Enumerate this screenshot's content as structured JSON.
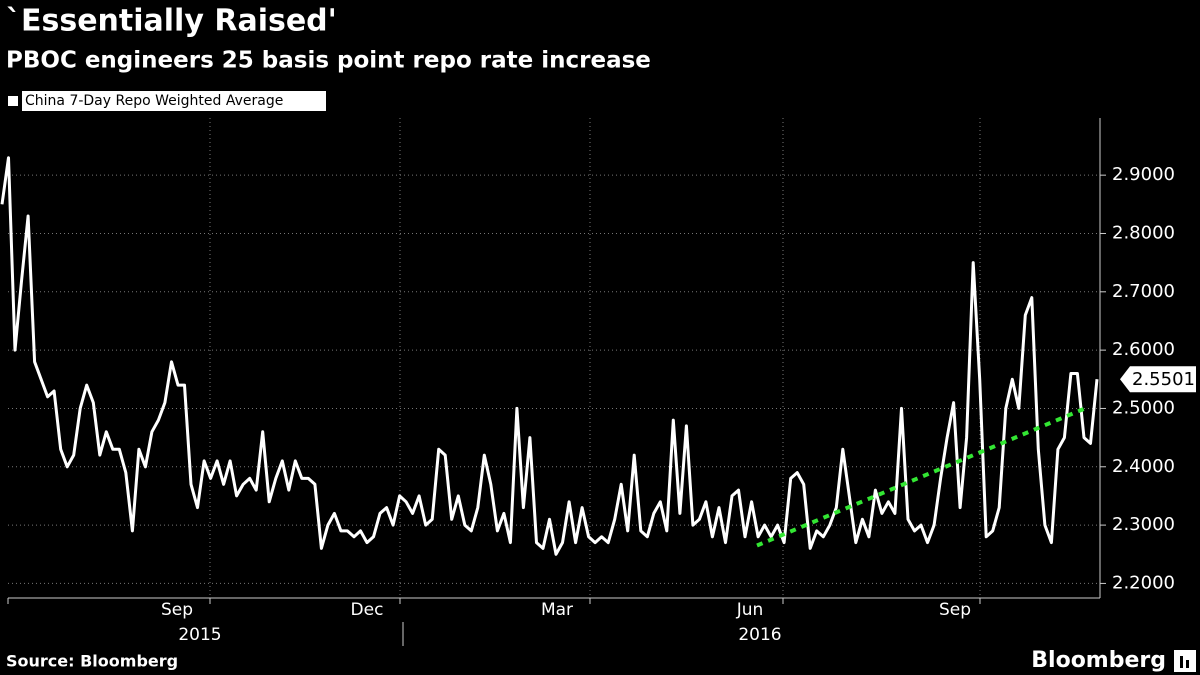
{
  "chart_data": {
    "type": "line",
    "title": "`Essentially Raised'",
    "subtitle": "PBOC engineers 25 basis point repo rate increase",
    "source": "Source: Bloomberg",
    "brand": "Bloomberg",
    "month_labels": [
      "Sep",
      "Dec",
      "Mar",
      "Jun",
      "Sep"
    ],
    "year_labels": [
      "2015",
      "2016"
    ],
    "ylim": [
      2.175,
      2.998
    ],
    "yticks": [
      {
        "value": 2.2,
        "label": "2.2000"
      },
      {
        "value": 2.3,
        "label": "2.3000"
      },
      {
        "value": 2.4,
        "label": "2.4000"
      },
      {
        "value": 2.5,
        "label": "2.5000"
      },
      {
        "value": 2.6,
        "label": "2.6000"
      },
      {
        "value": 2.7,
        "label": "2.7000"
      },
      {
        "value": 2.8,
        "label": "2.8000"
      },
      {
        "value": 2.9,
        "label": "2.9000"
      }
    ],
    "grid": true,
    "legend": "top-left",
    "series": [
      {
        "name": "China 7-Day Repo Weighted Average",
        "color": "#ffffff",
        "values": [
          2.85,
          2.93,
          2.6,
          2.72,
          2.83,
          2.58,
          2.55,
          2.52,
          2.53,
          2.43,
          2.4,
          2.42,
          2.5,
          2.54,
          2.51,
          2.42,
          2.46,
          2.43,
          2.43,
          2.39,
          2.29,
          2.43,
          2.4,
          2.46,
          2.48,
          2.51,
          2.58,
          2.54,
          2.54,
          2.37,
          2.33,
          2.41,
          2.38,
          2.41,
          2.37,
          2.41,
          2.35,
          2.37,
          2.38,
          2.36,
          2.46,
          2.34,
          2.38,
          2.41,
          2.36,
          2.41,
          2.38,
          2.38,
          2.37,
          2.26,
          2.3,
          2.32,
          2.29,
          2.29,
          2.28,
          2.29,
          2.27,
          2.28,
          2.32,
          2.33,
          2.3,
          2.35,
          2.34,
          2.32,
          2.35,
          2.3,
          2.31,
          2.43,
          2.42,
          2.31,
          2.35,
          2.3,
          2.29,
          2.33,
          2.42,
          2.37,
          2.29,
          2.32,
          2.27,
          2.5,
          2.33,
          2.45,
          2.27,
          2.26,
          2.31,
          2.25,
          2.27,
          2.34,
          2.27,
          2.33,
          2.28,
          2.27,
          2.28,
          2.27,
          2.31,
          2.37,
          2.29,
          2.42,
          2.29,
          2.28,
          2.32,
          2.34,
          2.29,
          2.48,
          2.32,
          2.47,
          2.3,
          2.31,
          2.34,
          2.28,
          2.33,
          2.27,
          2.35,
          2.36,
          2.28,
          2.34,
          2.28,
          2.3,
          2.28,
          2.3,
          2.27,
          2.38,
          2.39,
          2.37,
          2.26,
          2.29,
          2.28,
          2.3,
          2.33,
          2.43,
          2.35,
          2.27,
          2.31,
          2.28,
          2.36,
          2.32,
          2.34,
          2.32,
          2.5,
          2.31,
          2.29,
          2.3,
          2.27,
          2.3,
          2.38,
          2.45,
          2.51,
          2.33,
          2.45,
          2.75,
          2.55,
          2.28,
          2.29,
          2.33,
          2.5,
          2.55,
          2.5,
          2.66,
          2.69,
          2.43,
          2.3,
          2.27,
          2.43,
          2.45,
          2.56,
          2.56,
          2.45,
          2.44,
          2.5501
        ]
      }
    ],
    "trend": {
      "color": "#33e633",
      "values": [
        2.265,
        2.5
      ]
    }
  }
}
